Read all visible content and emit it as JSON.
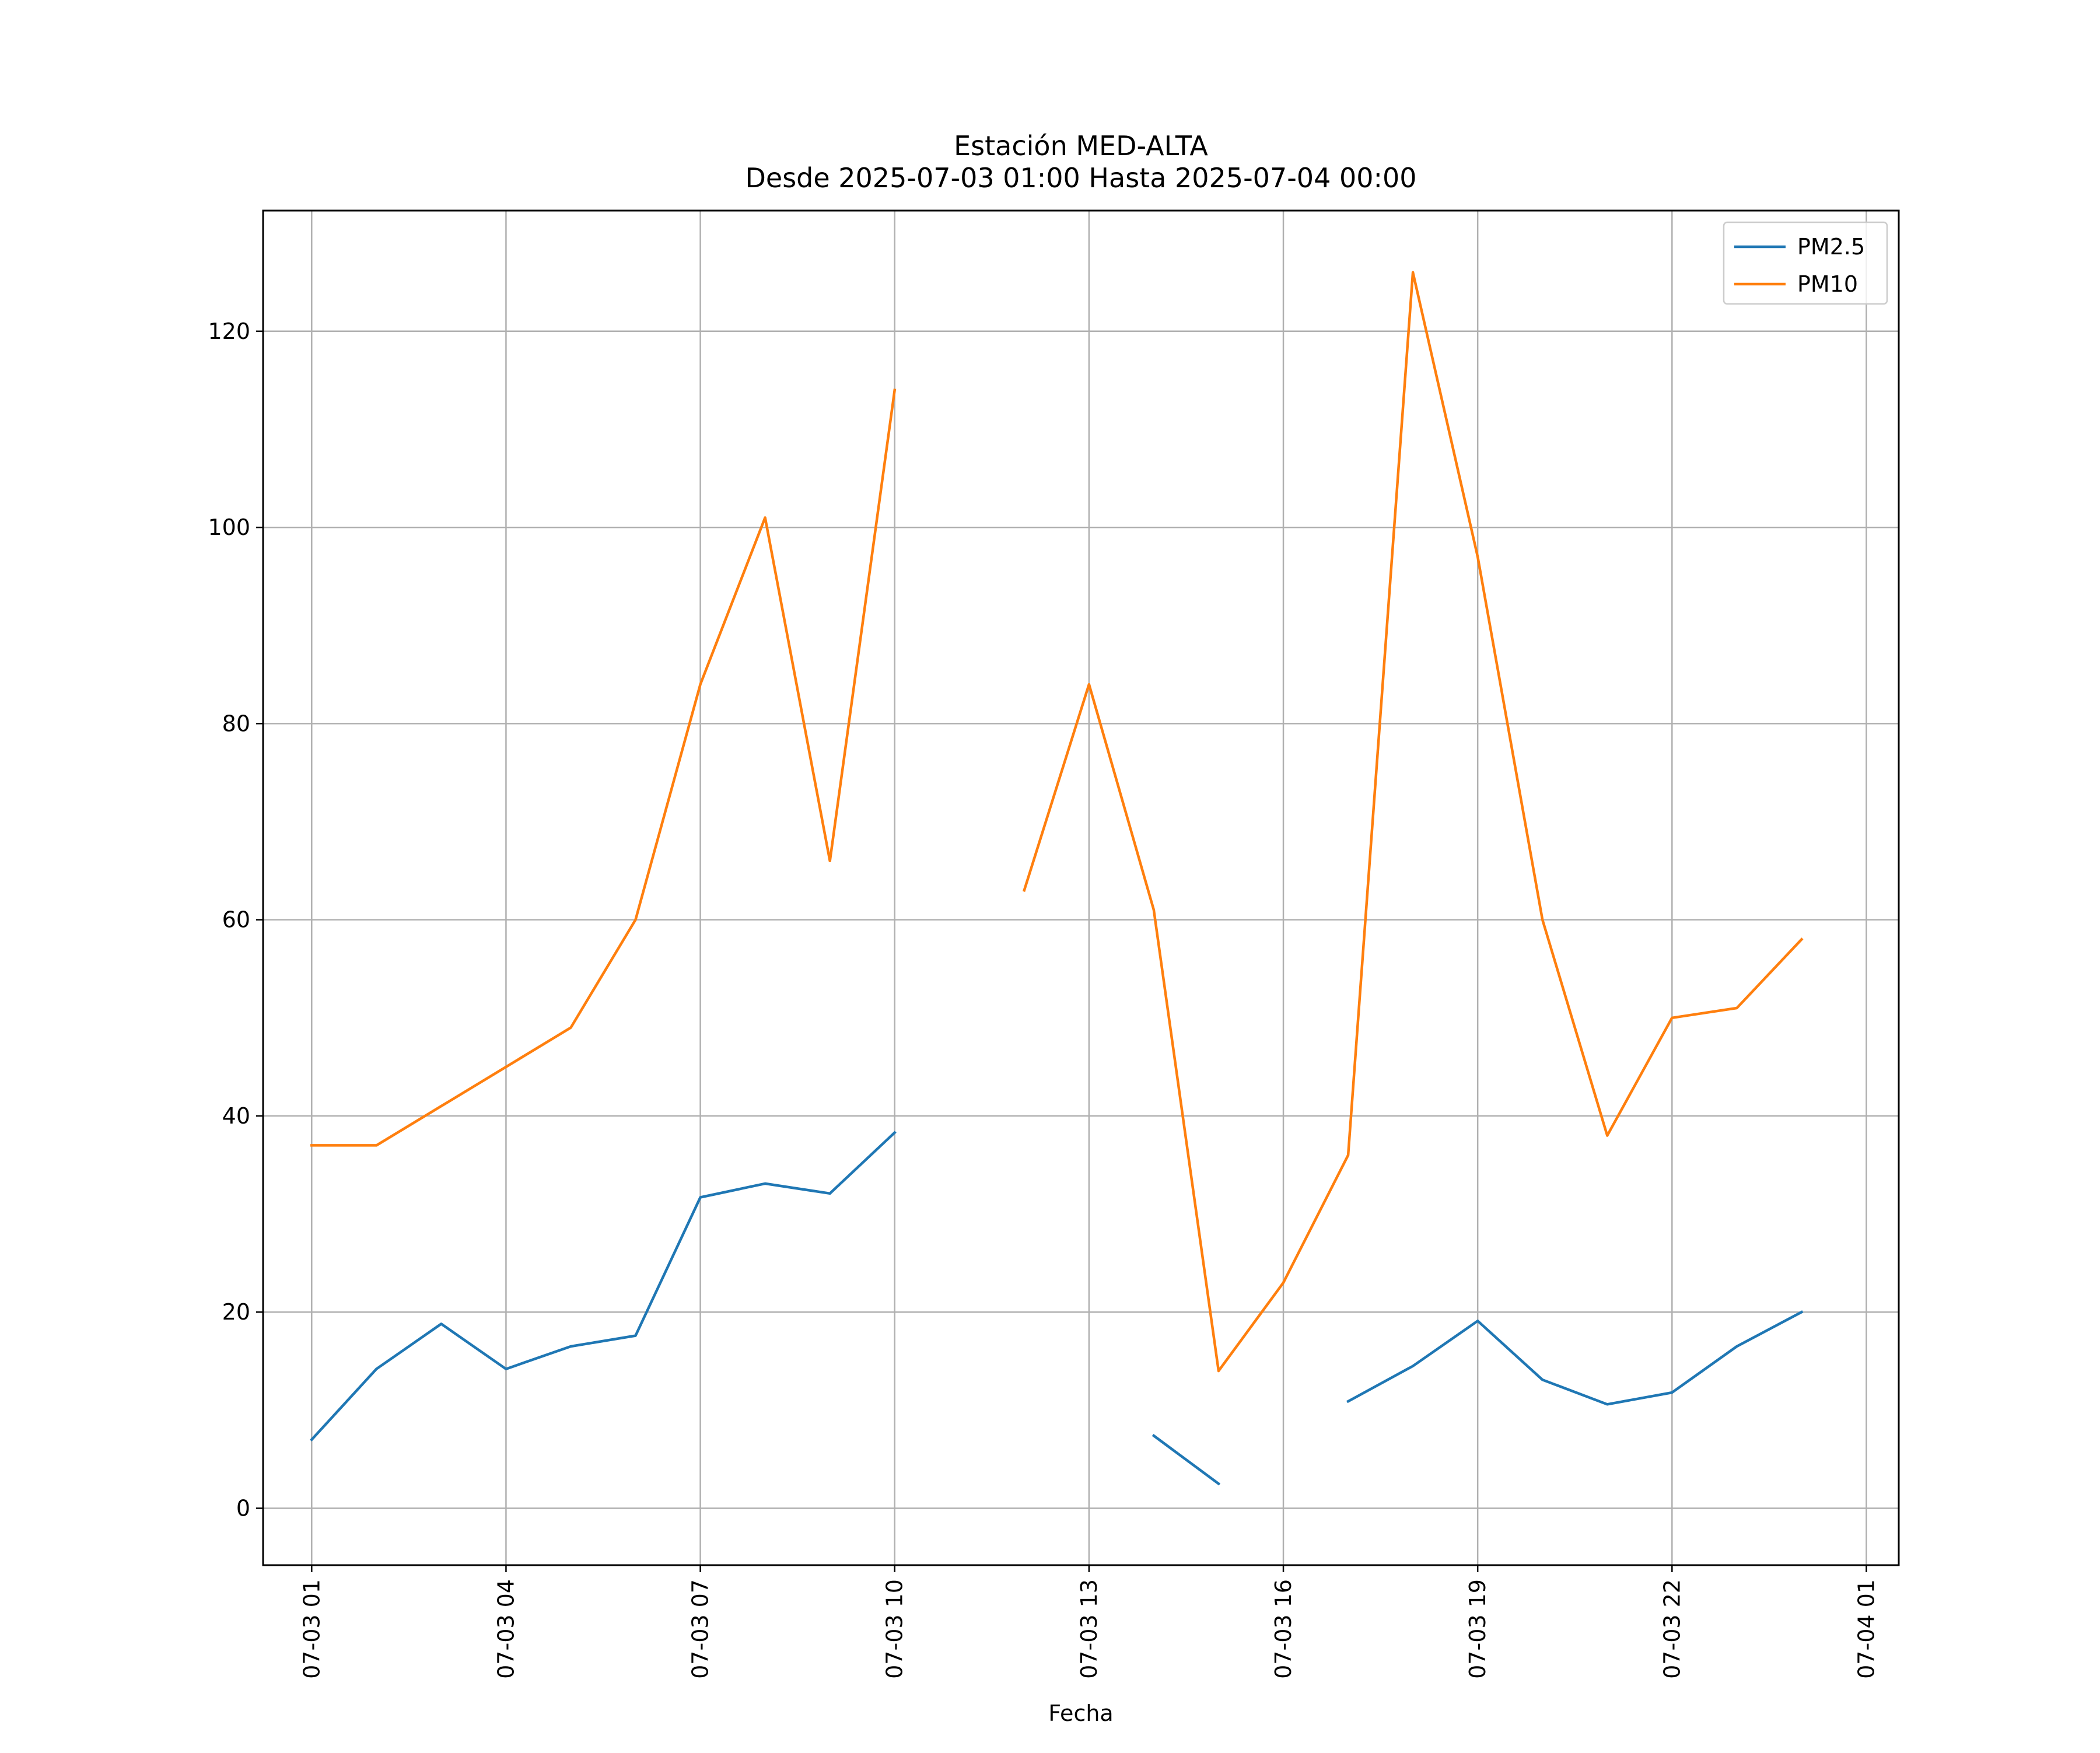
{
  "chart_data": {
    "type": "line",
    "title": "Estación MED-ALTA",
    "subtitle": "Desde 2025-07-03 01:00 Hasta 2025-07-04 00:00",
    "xlabel": "Fecha",
    "ylabel": "",
    "x": [
      "2025-07-03 01:00",
      "2025-07-03 02:00",
      "2025-07-03 03:00",
      "2025-07-03 04:00",
      "2025-07-03 05:00",
      "2025-07-03 06:00",
      "2025-07-03 07:00",
      "2025-07-03 08:00",
      "2025-07-03 09:00",
      "2025-07-03 10:00",
      "2025-07-03 11:00",
      "2025-07-03 12:00",
      "2025-07-03 13:00",
      "2025-07-03 14:00",
      "2025-07-03 15:00",
      "2025-07-03 16:00",
      "2025-07-03 17:00",
      "2025-07-03 18:00",
      "2025-07-03 19:00",
      "2025-07-03 20:00",
      "2025-07-03 21:00",
      "2025-07-03 22:00",
      "2025-07-03 23:00",
      "2025-07-04 00:00"
    ],
    "xlim": [
      "2025-07-03 00:15",
      "2025-07-04 01:30"
    ],
    "ylim": [
      -5.8,
      132.3
    ],
    "xticks": [
      {
        "x": "2025-07-03 01:00",
        "label": "07-03 01"
      },
      {
        "x": "2025-07-03 04:00",
        "label": "07-03 04"
      },
      {
        "x": "2025-07-03 07:00",
        "label": "07-03 07"
      },
      {
        "x": "2025-07-03 10:00",
        "label": "07-03 10"
      },
      {
        "x": "2025-07-03 13:00",
        "label": "07-03 13"
      },
      {
        "x": "2025-07-03 16:00",
        "label": "07-03 16"
      },
      {
        "x": "2025-07-03 19:00",
        "label": "07-03 19"
      },
      {
        "x": "2025-07-03 22:00",
        "label": "07-03 22"
      },
      {
        "x": "2025-07-04 01:00",
        "label": "07-04 01"
      }
    ],
    "yticks": [
      0,
      20,
      40,
      60,
      80,
      100,
      120
    ],
    "grid": true,
    "legend": "top-right",
    "series": [
      {
        "name": "PM2.5",
        "color": "#1f77b4",
        "values": [
          7,
          14.2,
          18.8,
          14.2,
          16.5,
          17.6,
          31.7,
          33.1,
          32.1,
          38.3,
          null,
          null,
          null,
          7.4,
          2.5,
          null,
          10.9,
          14.5,
          19.1,
          13.1,
          10.6,
          11.8,
          16.5,
          20
        ]
      },
      {
        "name": "PM10",
        "color": "#ff7f0e",
        "values": [
          37,
          37,
          41,
          45,
          49,
          60,
          84,
          101,
          66,
          114,
          null,
          63,
          84,
          61,
          14,
          23,
          36,
          126,
          97,
          60,
          38,
          50,
          51,
          58
        ]
      }
    ]
  }
}
